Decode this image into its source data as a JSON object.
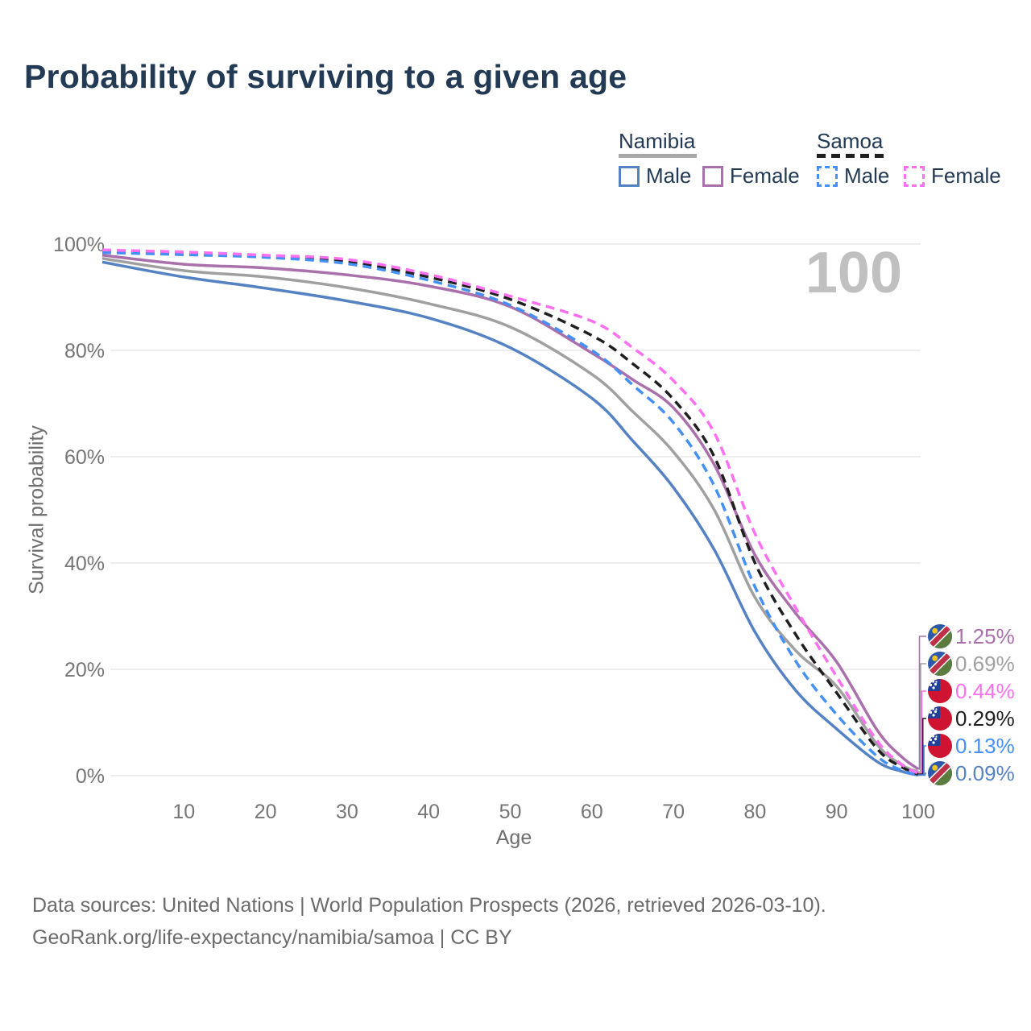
{
  "title": "Probability of surviving to a given age",
  "watermark": "100",
  "legend": {
    "groups": [
      {
        "label": "Namibia",
        "line_style": "solid",
        "line_color": "#a8a8a8",
        "items": [
          {
            "label": "Male",
            "color": "#5582c3",
            "dashed": false
          },
          {
            "label": "Female",
            "color": "#aa70ab",
            "dashed": false
          }
        ]
      },
      {
        "label": "Samoa",
        "line_style": "dashed",
        "line_color": "#1f1f1f",
        "items": [
          {
            "label": "Male",
            "color": "#4590f5",
            "dashed": true
          },
          {
            "label": "Female",
            "color": "#ff70f0",
            "dashed": true
          }
        ]
      }
    ]
  },
  "chart_data": {
    "type": "line",
    "title": "Probability of surviving to a given age",
    "xlabel": "Age",
    "ylabel": "Survival probability",
    "xlim": [
      0,
      100
    ],
    "ylim": [
      0,
      100
    ],
    "grid": "horizontal",
    "legend_position": "top-right",
    "x_ticks": [
      10,
      20,
      30,
      40,
      50,
      60,
      70,
      80,
      90,
      100
    ],
    "y_ticks": [
      {
        "value": 0,
        "label": "0%"
      },
      {
        "value": 20,
        "label": "20%"
      },
      {
        "value": 40,
        "label": "40%"
      },
      {
        "value": 60,
        "label": "60%"
      },
      {
        "value": 80,
        "label": "80%"
      },
      {
        "value": 100,
        "label": "100%"
      }
    ],
    "ages": [
      0,
      10,
      20,
      30,
      40,
      50,
      60,
      65,
      70,
      75,
      80,
      85,
      90,
      95,
      98,
      100
    ],
    "series": [
      {
        "name": "Namibia",
        "color": "#a0a0a0",
        "dashed": false,
        "values": [
          97.3,
          95.0,
          93.8,
          91.8,
          88.8,
          84.4,
          75.5,
          68.5,
          60.9,
          50.0,
          33.5,
          23.5,
          16.8,
          5.8,
          2.0,
          0.69
        ],
        "end_label": "0.69%"
      },
      {
        "name": "Namibia Male",
        "color": "#5582c3",
        "dashed": false,
        "values": [
          96.6,
          93.8,
          91.7,
          89.3,
          86.1,
          80.5,
          71.0,
          63.0,
          54.2,
          42.5,
          27.0,
          16.0,
          8.8,
          2.6,
          0.8,
          0.09
        ],
        "end_label": "0.09%"
      },
      {
        "name": "Namibia Female",
        "color": "#aa70ab",
        "dashed": false,
        "values": [
          97.9,
          96.2,
          95.5,
          94.2,
          92.1,
          88.2,
          79.5,
          74.5,
          69.2,
          58.5,
          41.5,
          30.5,
          21.4,
          8.5,
          3.5,
          1.25
        ],
        "end_label": "1.25%"
      },
      {
        "name": "Samoa",
        "color": "#1f1f1f",
        "dashed": true,
        "values": [
          98.6,
          98.2,
          97.7,
          96.7,
          93.8,
          89.6,
          82.8,
          77.5,
          70.8,
          60.0,
          40.0,
          26.5,
          15.6,
          5.0,
          1.6,
          0.29
        ],
        "end_label": "0.29%"
      },
      {
        "name": "Samoa Male",
        "color": "#4590f5",
        "dashed": true,
        "values": [
          98.4,
          98.0,
          97.5,
          96.3,
          93.2,
          88.5,
          80.0,
          73.5,
          66.4,
          54.5,
          35.5,
          21.5,
          11.5,
          3.6,
          1.0,
          0.13
        ],
        "end_label": "0.13%"
      },
      {
        "name": "Samoa Female",
        "color": "#ff70f0",
        "dashed": true,
        "values": [
          98.9,
          98.5,
          97.9,
          97.1,
          94.3,
          90.2,
          85.5,
          80.5,
          74.3,
          64.5,
          45.5,
          31.5,
          18.6,
          6.5,
          2.1,
          0.44
        ],
        "end_label": "0.44%"
      }
    ],
    "end_labels": [
      {
        "text": "1.25%",
        "series": 2,
        "flag": "namibia"
      },
      {
        "text": "0.69%",
        "series": 0,
        "flag": "namibia"
      },
      {
        "text": "0.44%",
        "series": 5,
        "flag": "samoa"
      },
      {
        "text": "0.29%",
        "series": 3,
        "flag": "samoa"
      },
      {
        "text": "0.13%",
        "series": 4,
        "flag": "samoa"
      },
      {
        "text": "0.09%",
        "series": 1,
        "flag": "namibia"
      }
    ]
  },
  "flags": {
    "namibia": {
      "blue": "#2d5aa6",
      "red": "#bf3148",
      "green": "#5a7c3d",
      "sun": "#f2c51d",
      "stripe": "#ffffff"
    },
    "samoa": {
      "red": "#ce1430",
      "blue": "#22409a",
      "stars": "#ffffff"
    }
  },
  "footer": {
    "line1": "Data sources: United Nations | World Population Prospects (2026, retrieved 2026-03-10).",
    "line2": "GeoRank.org/life-expectancy/namibia/samoa | CC BY"
  }
}
